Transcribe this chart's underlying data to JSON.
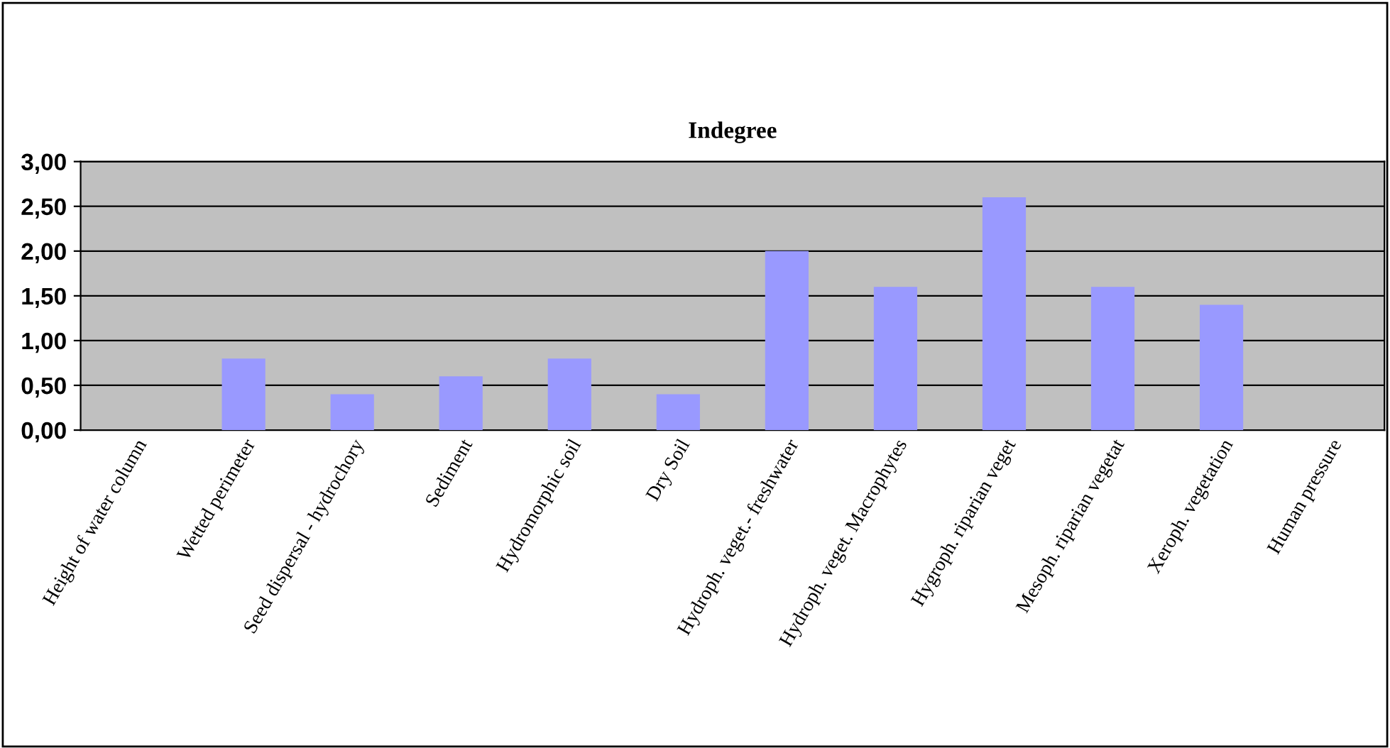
{
  "chart_data": {
    "type": "bar",
    "title": "Indegree",
    "categories": [
      "Height of water column",
      "Wetted perimeter",
      "Seed dispersal - hydrochory",
      "Sediment",
      "Hydromorphic soil",
      "Dry Soil",
      "Hydroph. veget.- freshwater",
      "Hydroph. veget. Macrophytes",
      "Hygroph. riparian veget",
      "Mesoph. riparian vegetat",
      "Xeroph. vegetation",
      "Human pressure"
    ],
    "values": [
      0,
      0.8,
      0.4,
      0.6,
      0.8,
      0.4,
      2.0,
      1.6,
      2.6,
      1.6,
      1.4,
      0
    ],
    "color": "#9999ff",
    "ylim": [
      0,
      3
    ],
    "yticks": [
      {
        "value": 0,
        "label": "0,00"
      },
      {
        "value": 0.5,
        "label": "0,50"
      },
      {
        "value": 1,
        "label": "1,00"
      },
      {
        "value": 1.5,
        "label": "1,50"
      },
      {
        "value": 2,
        "label": "2,00"
      },
      {
        "value": 2.5,
        "label": "2,50"
      },
      {
        "value": 3,
        "label": "3,00"
      }
    ],
    "grid": "y",
    "legend": false
  }
}
